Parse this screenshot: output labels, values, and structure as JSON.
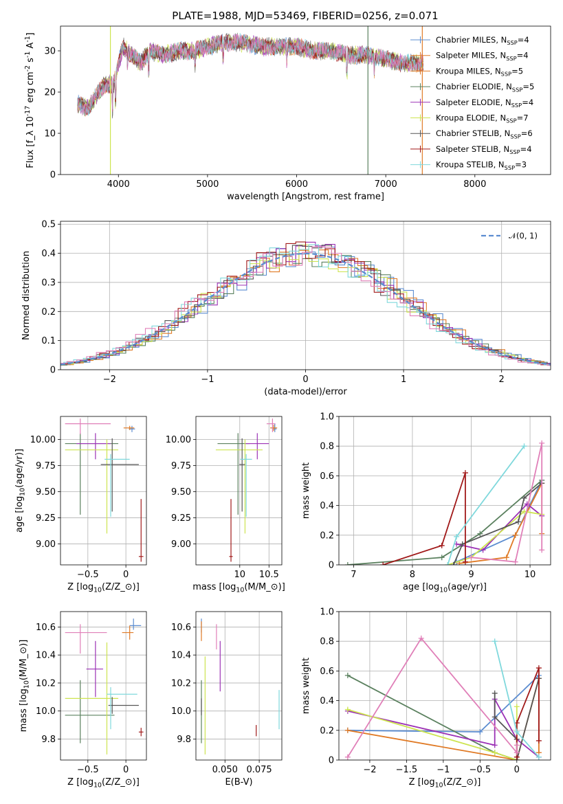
{
  "title": "PLATE=1988, MJD=53469, FIBERID=0256, z=0.071",
  "colors": [
    "#5b8cd0",
    "#e07a25",
    "#5a805e",
    "#9b30b5",
    "#cde44f",
    "#555555",
    "#a01818",
    "#7fd8dc",
    "#e07fb8"
  ],
  "legend_spectrum": [
    {
      "label": "Chabrier MILES, N_{SSP}=4",
      "color": "#5b8cd0"
    },
    {
      "label": "Salpeter MILES, N_{SSP}=4",
      "color": "#e07a25"
    },
    {
      "label": "Kroupa MILES, N_{SSP}=5",
      "color": "#e07a25"
    },
    {
      "label": "Chabrier ELODIE, N_{SSP}=5",
      "color": "#5a805e"
    },
    {
      "label": "Salpeter ELODIE, N_{SSP}=4",
      "color": "#9b30b5"
    },
    {
      "label": "Kroupa ELODIE, N_{SSP}=7",
      "color": "#cde44f"
    },
    {
      "label": "Chabrier STELIB, N_{SSP}=6",
      "color": "#555555"
    },
    {
      "label": "Salpeter STELIB, N_{SSP}=4",
      "color": "#a01818"
    },
    {
      "label": "Kroupa STELIB, N_{SSP}=3",
      "color": "#7fd8dc"
    }
  ],
  "chart_data": [
    {
      "id": "spectrum",
      "type": "line",
      "xlabel": "wavelength [Angstrom, rest frame]",
      "ylabel": "Flux [f_λ 10^{-17} erg cm^{-2} s^{-1} A^{-1}]",
      "xlim": [
        3350,
        8850
      ],
      "ylim": [
        0,
        36
      ],
      "xticks": [
        4000,
        5000,
        6000,
        7000,
        8000
      ],
      "yticks": [
        0,
        10,
        20,
        30
      ],
      "anchors_x": [
        3550,
        3650,
        3750,
        3850,
        3950,
        4050,
        4150,
        4250,
        4350,
        4500,
        4700,
        4860,
        5000,
        5200,
        5400,
        5600,
        5800,
        6000,
        6200,
        6400,
        6600,
        6800,
        7000,
        7200,
        7400
      ],
      "anchors_y": [
        17,
        16,
        19,
        22,
        22,
        31,
        29,
        27,
        30,
        29,
        30,
        30,
        31,
        32,
        32,
        31,
        31,
        31,
        30,
        30,
        29,
        29,
        28,
        27,
        27
      ]
    },
    {
      "id": "residuals",
      "type": "step",
      "xlabel": "(data-model)/error",
      "ylabel": "Normed distribution",
      "xlim": [
        -2.5,
        2.5
      ],
      "ylim": [
        0,
        0.51
      ],
      "xticks": [
        -2,
        -1,
        0,
        1,
        2
      ],
      "yticks": [
        0.0,
        0.1,
        0.2,
        0.3,
        0.4,
        0.5
      ],
      "legend": "𝒩(0, 1)",
      "gauss_color": "#5b8cd0"
    },
    {
      "id": "age-vs-Z",
      "type": "errorbar",
      "xlabel": "Z [log_{10}(Z/Z_⊙)]",
      "ylabel": "age  [log_{10}(age/yr)]",
      "xlim": [
        -0.86,
        0.27
      ],
      "ylim": [
        8.8,
        10.22
      ],
      "xticks": [
        -0.5,
        0.0
      ],
      "yticks": [
        9.0,
        9.25,
        9.5,
        9.75,
        10.0
      ],
      "points": [
        {
          "x": 0.08,
          "y": 10.1,
          "xerr": [
            0.04,
            0.04
          ],
          "yerr": [
            0.03,
            0.03
          ],
          "color": "#5b8cd0"
        },
        {
          "x": 0.05,
          "y": 10.11,
          "xerr": [
            0.08,
            0.06
          ],
          "yerr": [
            0.02,
            0.02
          ],
          "color": "#e07a25"
        },
        {
          "x": -0.6,
          "y": 9.96,
          "xerr": [
            0.2,
            0.5
          ],
          "yerr": [
            0.68,
            0.1
          ],
          "color": "#5a805e"
        },
        {
          "x": -0.4,
          "y": 9.96,
          "xerr": [
            0.25,
            0.2
          ],
          "yerr": [
            0.15,
            0.1
          ],
          "color": "#9b30b5"
        },
        {
          "x": -0.25,
          "y": 9.9,
          "xerr": [
            0.55,
            0.15
          ],
          "yerr": [
            0.8,
            0.1
          ],
          "color": "#cde44f"
        },
        {
          "x": -0.18,
          "y": 9.76,
          "xerr": [
            0.15,
            0.35
          ],
          "yerr": [
            0.45,
            0.25
          ],
          "color": "#555555"
        },
        {
          "x": 0.2,
          "y": 8.88,
          "xerr": [
            0.03,
            0.03
          ],
          "yerr": [
            0.05,
            0.55
          ],
          "color": "#a01818"
        },
        {
          "x": -0.2,
          "y": 9.81,
          "xerr": [
            0.08,
            0.25
          ],
          "yerr": [
            0.55,
            0.05
          ],
          "color": "#7fd8dc"
        },
        {
          "x": -0.6,
          "y": 10.15,
          "xerr": [
            0.2,
            0.4
          ],
          "yerr": [
            0.1,
            0.05
          ],
          "color": "#e07fb8"
        }
      ]
    },
    {
      "id": "age-vs-mass",
      "type": "errorbar",
      "xlabel": "mass [log_{10}(M/M_⊙)]",
      "ylabel": "",
      "xlim": [
        9.25,
        10.72
      ],
      "ylim": [
        8.8,
        10.22
      ],
      "xticks": [
        10.0,
        10.5
      ],
      "yticks": [
        9.0,
        9.25,
        9.5,
        9.75,
        10.0
      ],
      "points": [
        {
          "x": 10.6,
          "y": 10.1,
          "xerr": [
            0.03,
            0.03
          ],
          "yerr": [
            0.03,
            0.05
          ],
          "color": "#5b8cd0"
        },
        {
          "x": 10.58,
          "y": 10.11,
          "xerr": [
            0.06,
            0.06
          ],
          "yerr": [
            0.03,
            0.03
          ],
          "color": "#e07a25"
        },
        {
          "x": 9.97,
          "y": 9.96,
          "xerr": [
            0.35,
            0.2
          ],
          "yerr": [
            0.68,
            0.1
          ],
          "color": "#5a805e"
        },
        {
          "x": 10.3,
          "y": 9.96,
          "xerr": [
            0.2,
            0.2
          ],
          "yerr": [
            0.15,
            0.1
          ],
          "color": "#9b30b5"
        },
        {
          "x": 10.09,
          "y": 9.9,
          "xerr": [
            0.5,
            0.3
          ],
          "yerr": [
            0.8,
            0.1
          ],
          "color": "#cde44f"
        },
        {
          "x": 10.04,
          "y": 9.76,
          "xerr": [
            0.05,
            0.05
          ],
          "yerr": [
            0.45,
            0.25
          ],
          "color": "#555555"
        },
        {
          "x": 9.85,
          "y": 8.88,
          "xerr": [
            0.03,
            0.03
          ],
          "yerr": [
            0.05,
            0.55
          ],
          "color": "#a01818"
        },
        {
          "x": 10.11,
          "y": 9.81,
          "xerr": [
            0.1,
            0.1
          ],
          "yerr": [
            0.55,
            0.05
          ],
          "color": "#7fd8dc"
        },
        {
          "x": 10.56,
          "y": 10.15,
          "xerr": [
            0.1,
            0.05
          ],
          "yerr": [
            0.08,
            0.05
          ],
          "color": "#e07fb8"
        }
      ]
    },
    {
      "id": "weight-vs-age",
      "type": "line",
      "xlabel": "age  [log_{10}(age/yr)]",
      "ylabel": "mass weight",
      "xlim": [
        6.75,
        10.35
      ],
      "ylim": [
        0,
        1
      ],
      "xticks": [
        7,
        8,
        9,
        10
      ],
      "yticks": [
        0.0,
        0.2,
        0.4,
        0.6,
        0.8,
        1.0
      ],
      "series": [
        {
          "color": "#5b8cd0",
          "x": [
            8.75,
            9.75,
            10.2
          ],
          "y": [
            0.02,
            0.2,
            0.57
          ]
        },
        {
          "color": "#e07a25",
          "x": [
            8.8,
            9.6,
            9.75,
            10.2,
            10.2
          ],
          "y": [
            0.01,
            0.05,
            0.2,
            0.55,
            0.21
          ]
        },
        {
          "color": "#5a805e",
          "x": [
            6.9,
            8.5,
            9.15,
            10.2
          ],
          "y": [
            0.0,
            0.05,
            0.21,
            0.57
          ]
        },
        {
          "color": "#9b30b5",
          "x": [
            8.75,
            9.2,
            9.95,
            10.2
          ],
          "y": [
            0.14,
            0.1,
            0.41,
            0.33
          ]
        },
        {
          "color": "#cde44f",
          "x": [
            8.6,
            9.0,
            9.9,
            10.2
          ],
          "y": [
            0.0,
            0.05,
            0.36,
            0.34
          ]
        },
        {
          "color": "#555555",
          "x": [
            8.7,
            8.85,
            9.8,
            9.9,
            10.2
          ],
          "y": [
            0.0,
            0.14,
            0.29,
            0.45,
            0.55
          ]
        },
        {
          "color": "#a01818",
          "x": [
            7.5,
            8.5,
            8.9,
            8.9
          ],
          "y": [
            0.0,
            0.13,
            0.62,
            0.02
          ]
        },
        {
          "color": "#7fd8dc",
          "x": [
            8.6,
            8.75,
            9.9
          ],
          "y": [
            0.0,
            0.19,
            0.8
          ]
        },
        {
          "color": "#e07fb8",
          "x": [
            9.0,
            9.75,
            10.2,
            10.2
          ],
          "y": [
            0.05,
            0.02,
            0.82,
            0.1
          ]
        }
      ]
    },
    {
      "id": "mass-vs-Z",
      "type": "errorbar",
      "xlabel": "Z [log_{10}(Z/Z_⊙)]",
      "ylabel": "mass [log_{10}(M/M_⊙)]",
      "xlim": [
        -0.86,
        0.27
      ],
      "ylim": [
        9.65,
        10.71
      ],
      "xticks": [
        -0.5,
        0.0
      ],
      "yticks": [
        9.8,
        10.0,
        10.2,
        10.4,
        10.6
      ],
      "points": [
        {
          "x": 0.1,
          "y": 10.61,
          "xerr": [
            0.05,
            0.1
          ],
          "yerr": [
            0.03,
            0.05
          ],
          "color": "#5b8cd0"
        },
        {
          "x": 0.05,
          "y": 10.56,
          "xerr": [
            0.1,
            0.05
          ],
          "yerr": [
            0.05,
            0.05
          ],
          "color": "#e07a25"
        },
        {
          "x": -0.6,
          "y": 9.97,
          "xerr": [
            0.2,
            0.45
          ],
          "yerr": [
            0.2,
            0.25
          ],
          "color": "#5a805e"
        },
        {
          "x": -0.4,
          "y": 10.3,
          "xerr": [
            0.12,
            0.1
          ],
          "yerr": [
            0.2,
            0.2
          ],
          "color": "#9b30b5"
        },
        {
          "x": -0.25,
          "y": 10.09,
          "xerr": [
            0.55,
            0.15
          ],
          "yerr": [
            0.4,
            0.4
          ],
          "color": "#cde44f"
        },
        {
          "x": -0.18,
          "y": 10.04,
          "xerr": [
            0.05,
            0.35
          ],
          "yerr": [
            0.06,
            0.06
          ],
          "color": "#555555"
        },
        {
          "x": 0.2,
          "y": 9.85,
          "xerr": [
            0.03,
            0.03
          ],
          "yerr": [
            0.03,
            0.03
          ],
          "color": "#a01818"
        },
        {
          "x": -0.2,
          "y": 10.12,
          "xerr": [
            0.05,
            0.35
          ],
          "yerr": [
            0.25,
            0.05
          ],
          "color": "#7fd8dc"
        },
        {
          "x": -0.6,
          "y": 10.56,
          "xerr": [
            0.2,
            0.35
          ],
          "yerr": [
            0.15,
            0.06
          ],
          "color": "#e07fb8"
        }
      ]
    },
    {
      "id": "mass-vs-ebv",
      "type": "errorbar",
      "xlabel": "E(B-V)",
      "ylabel": "",
      "xlim": [
        0.0288,
        0.0915
      ],
      "ylim": [
        9.65,
        10.71
      ],
      "xticks": [
        0.05,
        0.075
      ],
      "xticklabels": [
        "0.050",
        "0.075"
      ],
      "yticks": [
        9.8,
        10.0,
        10.2,
        10.4,
        10.6
      ],
      "points": [
        {
          "x": 0.0328,
          "y": 10.61,
          "xerr": [
            0,
            0
          ],
          "yerr": [
            0.05,
            0.05
          ],
          "color": "#5b8cd0"
        },
        {
          "x": 0.0328,
          "y": 10.56,
          "xerr": [
            0,
            0
          ],
          "yerr": [
            0.06,
            0.08
          ],
          "color": "#e07a25"
        },
        {
          "x": 0.0328,
          "y": 9.97,
          "xerr": [
            0,
            0
          ],
          "yerr": [
            0.2,
            0.25
          ],
          "color": "#5a805e"
        },
        {
          "x": 0.0465,
          "y": 10.3,
          "xerr": [
            0,
            0
          ],
          "yerr": [
            0.16,
            0.2
          ],
          "color": "#9b30b5"
        },
        {
          "x": 0.0355,
          "y": 10.09,
          "xerr": [
            0,
            0
          ],
          "yerr": [
            0.4,
            0.3
          ],
          "color": "#cde44f"
        },
        {
          "x": 0.0328,
          "y": 10.03,
          "xerr": [
            0,
            0
          ],
          "yerr": [
            0.06,
            0.06
          ],
          "color": "#555555"
        },
        {
          "x": 0.0728,
          "y": 9.86,
          "xerr": [
            0,
            0
          ],
          "yerr": [
            0.04,
            0.04
          ],
          "color": "#a01818"
        },
        {
          "x": 0.0895,
          "y": 10.01,
          "xerr": [
            0,
            0
          ],
          "yerr": [
            0.14,
            0.14
          ],
          "color": "#7fd8dc"
        },
        {
          "x": 0.0438,
          "y": 10.52,
          "xerr": [
            0,
            0
          ],
          "yerr": [
            0.08,
            0.1
          ],
          "color": "#e07fb8"
        }
      ]
    },
    {
      "id": "weight-vs-Z",
      "type": "line",
      "xlabel": "Z [log_{10}(Z/Z_⊙)]",
      "ylabel": "mass weight",
      "xlim": [
        -2.42,
        0.46
      ],
      "ylim": [
        0,
        1
      ],
      "xticks": [
        -2.0,
        -1.5,
        -1.0,
        -0.5,
        0.0
      ],
      "yticks": [
        0.0,
        0.2,
        0.4,
        0.6,
        0.8,
        1.0
      ],
      "series": [
        {
          "color": "#5b8cd0",
          "x": [
            -2.3,
            -0.5,
            0.3
          ],
          "y": [
            0.2,
            0.19,
            0.57
          ]
        },
        {
          "color": "#e07a25",
          "x": [
            -2.3,
            0.0,
            0.3,
            0.3
          ],
          "y": [
            0.2,
            0.0,
            0.55,
            0.05
          ]
        },
        {
          "color": "#5a805e",
          "x": [
            -2.3,
            -0.3,
            0.0
          ],
          "y": [
            0.57,
            0.05,
            0.0
          ]
        },
        {
          "color": "#9b30b5",
          "x": [
            -2.3,
            -0.3,
            -0.3,
            0.0,
            0.3
          ],
          "y": [
            0.33,
            0.1,
            0.41,
            0.14,
            0.02
          ]
        },
        {
          "color": "#cde44f",
          "x": [
            -2.3,
            -0.3,
            0.0,
            0.0
          ],
          "y": [
            0.34,
            0.05,
            0.0,
            0.36
          ]
        },
        {
          "color": "#555555",
          "x": [
            -0.3,
            -0.3,
            0.0,
            0.0,
            0.3
          ],
          "y": [
            0.45,
            0.29,
            0.14,
            0.0,
            0.55
          ]
        },
        {
          "color": "#a01818",
          "x": [
            0.0,
            0.0,
            0.3,
            0.3
          ],
          "y": [
            0.02,
            0.25,
            0.62,
            0.13
          ]
        },
        {
          "color": "#7fd8dc",
          "x": [
            -0.3,
            0.0,
            0.3
          ],
          "y": [
            0.8,
            0.19,
            0.02
          ]
        },
        {
          "color": "#e07fb8",
          "x": [
            -2.3,
            -1.3,
            0.0,
            0.0
          ],
          "y": [
            0.02,
            0.82,
            0.05,
            0.1
          ]
        }
      ]
    }
  ]
}
